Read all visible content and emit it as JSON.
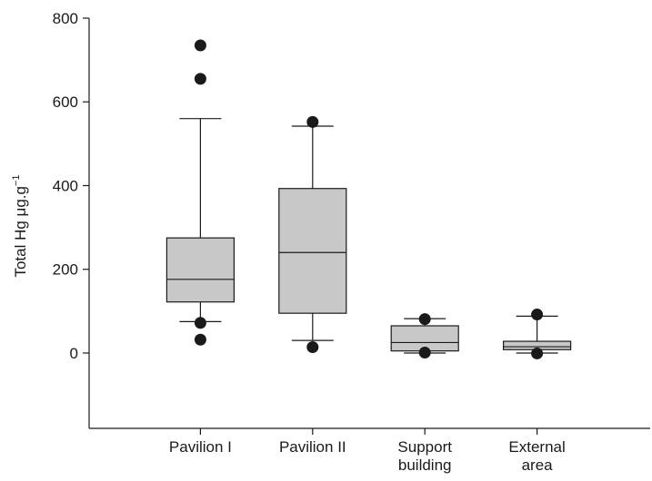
{
  "chart_data": {
    "type": "box",
    "ylabel": "Total Hg μg.g",
    "ylabel_superscript": "−1",
    "ylim": [
      -180,
      800
    ],
    "yticks": [
      0,
      200,
      400,
      600,
      800
    ],
    "ytick_labels": [
      "0",
      "200",
      "400",
      "600",
      "800"
    ],
    "categories": [
      {
        "lines": [
          "Pavilion I"
        ]
      },
      {
        "lines": [
          "Pavilion II"
        ]
      },
      {
        "lines": [
          "Support",
          "building"
        ]
      },
      {
        "lines": [
          "External",
          "area"
        ]
      }
    ],
    "boxes": [
      {
        "whisker_low": 75,
        "q1": 122,
        "median": 176,
        "q3": 275,
        "whisker_high": 560,
        "outliers": [
          735,
          655,
          72,
          32
        ]
      },
      {
        "whisker_low": 30,
        "q1": 95,
        "median": 240,
        "q3": 393,
        "whisker_high": 542,
        "outliers": [
          552,
          14
        ]
      },
      {
        "whisker_low": 0,
        "q1": 5,
        "median": 25,
        "q3": 65,
        "whisker_high": 82,
        "outliers": [
          81,
          1
        ]
      },
      {
        "whisker_low": 0,
        "q1": 8,
        "median": 15,
        "q3": 28,
        "whisker_high": 88,
        "outliers": [
          92,
          -1
        ]
      }
    ],
    "box_fill": "#c8c8c8",
    "stroke_color": "#1a1a1a",
    "grid": false
  }
}
